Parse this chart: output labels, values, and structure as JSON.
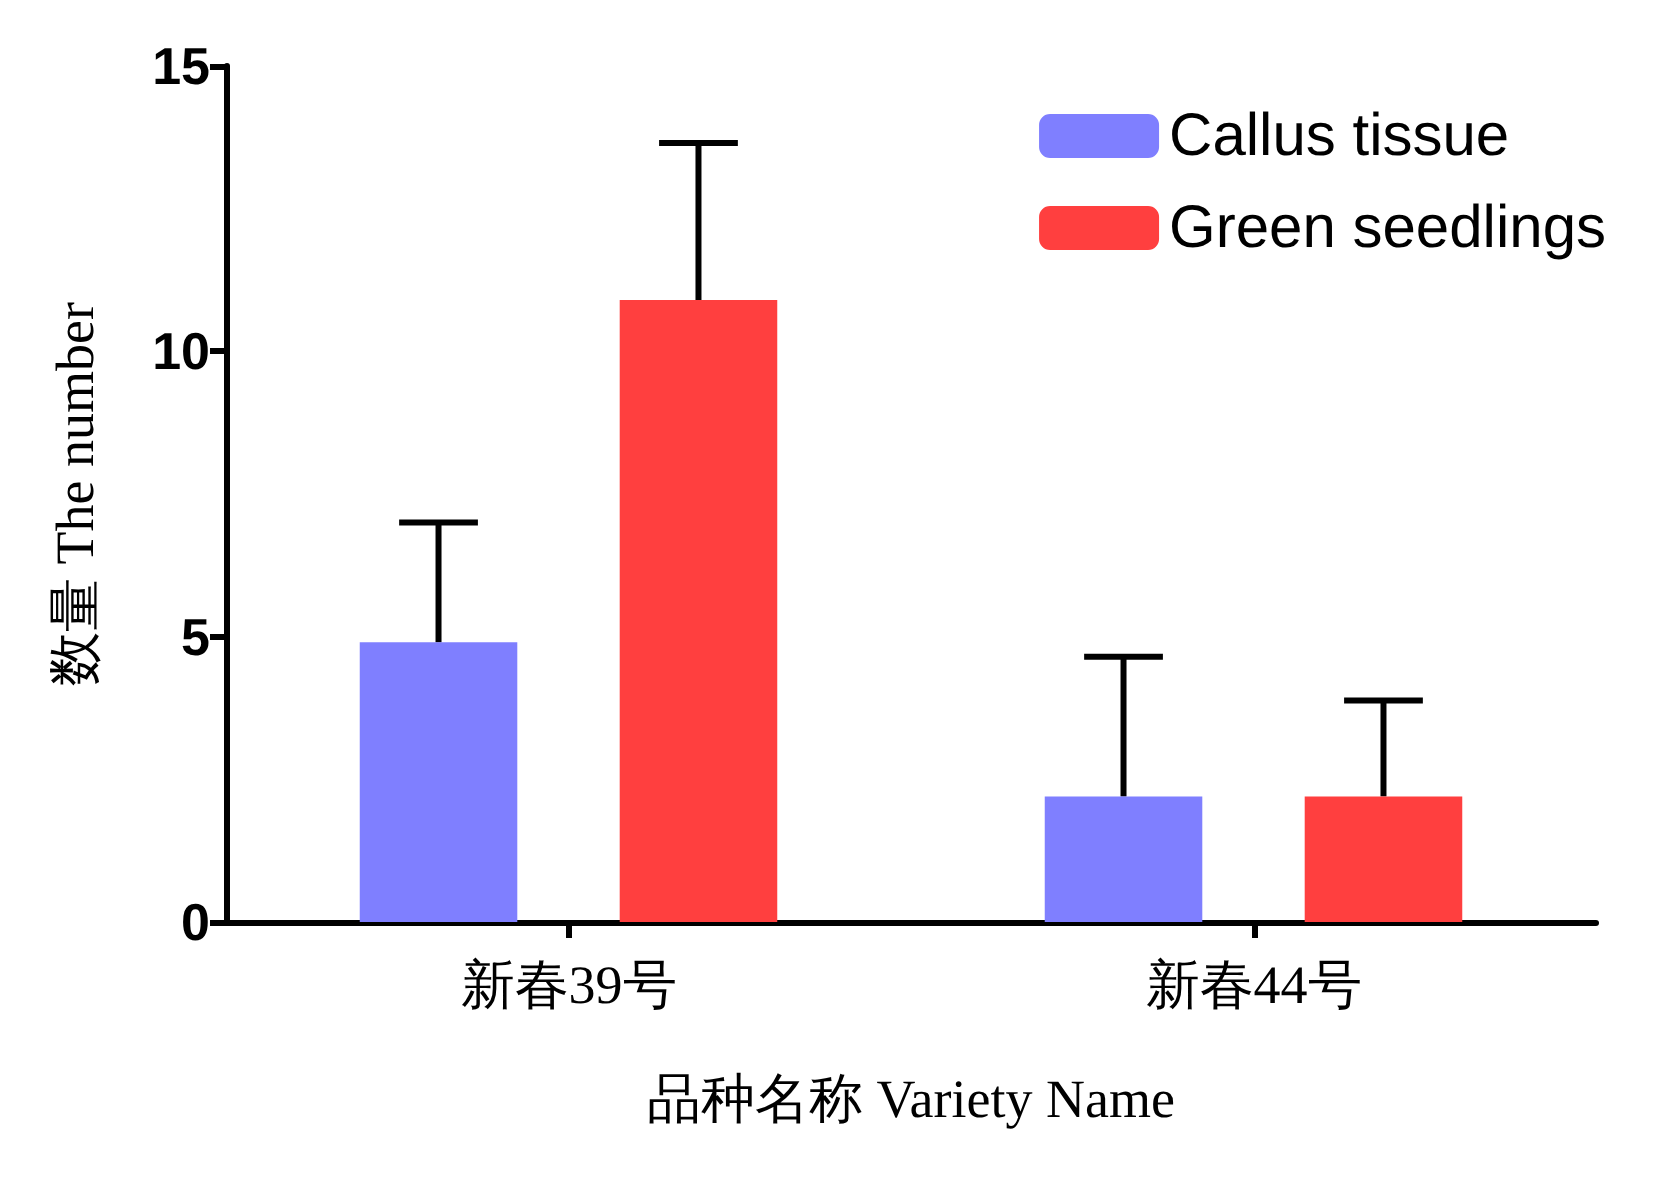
{
  "chart_data": {
    "type": "bar",
    "xlabel": "品种名称 Variety Name",
    "ylabel": "数量 The number",
    "categories": [
      "新春39号",
      "新春44号"
    ],
    "series": [
      {
        "name": "Callus tissue",
        "color": "#7f7fff",
        "values": [
          4.9,
          2.2
        ],
        "errors": [
          [
            4.9,
            7.0
          ],
          [
            2.2,
            4.65
          ]
        ]
      },
      {
        "name": "Green seedlings",
        "color": "#ff3f3f",
        "values": [
          10.9,
          2.2
        ],
        "errors": [
          [
            10.9,
            13.65
          ],
          [
            2.2,
            3.88
          ]
        ]
      }
    ],
    "ylim": [
      0,
      15
    ],
    "yticks": [
      0,
      5,
      10,
      15
    ],
    "grid": false,
    "legend": "top right"
  }
}
